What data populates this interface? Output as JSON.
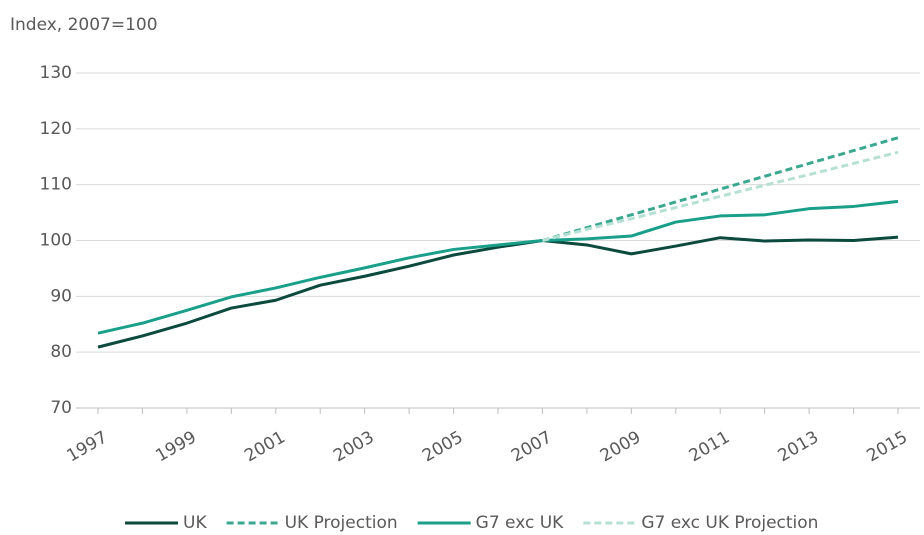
{
  "chart_data": {
    "type": "line",
    "y_axis_label": "Index, 2007=100",
    "categories": [
      "1997",
      null,
      "1999",
      null,
      "2001",
      null,
      "2003",
      null,
      "2005",
      null,
      "2007",
      null,
      "2009",
      null,
      "2011",
      null,
      "2013",
      null,
      "2015"
    ],
    "series": [
      {
        "name": "UK",
        "color": "#0b4a3d",
        "dashed": false,
        "values": [
          80.9,
          82.9,
          85.2,
          87.9,
          89.3,
          92.0,
          93.6,
          95.4,
          97.4,
          98.8,
          100,
          99.2,
          97.6,
          99.0,
          100.5,
          99.9,
          100.1,
          100.0,
          100.6
        ]
      },
      {
        "name": "UK Projection",
        "color": "#3aa88f",
        "dashed": true,
        "values": [
          null,
          null,
          null,
          null,
          null,
          null,
          null,
          null,
          null,
          null,
          100,
          102.3,
          104.6,
          106.9,
          109.2,
          111.5,
          113.8,
          116.1,
          118.4
        ]
      },
      {
        "name": "G7 exc UK",
        "color": "#1aa08a",
        "dashed": false,
        "values": [
          83.4,
          85.2,
          87.5,
          89.9,
          91.5,
          93.4,
          95.1,
          96.9,
          98.4,
          99.2,
          100,
          100.3,
          100.8,
          103.3,
          104.4,
          104.6,
          105.7,
          106.1,
          107.0
        ]
      },
      {
        "name": "G7 exc UK Projection",
        "color": "#b7e0d4",
        "dashed": true,
        "values": [
          null,
          null,
          null,
          null,
          null,
          null,
          null,
          null,
          null,
          null,
          100,
          102.0,
          103.9,
          105.9,
          107.9,
          109.9,
          111.8,
          113.8,
          115.8
        ]
      }
    ],
    "ylim": [
      70,
      130
    ],
    "yticks": [
      70,
      80,
      90,
      100,
      110,
      120,
      130
    ],
    "grid": true,
    "legend": "bottom"
  }
}
